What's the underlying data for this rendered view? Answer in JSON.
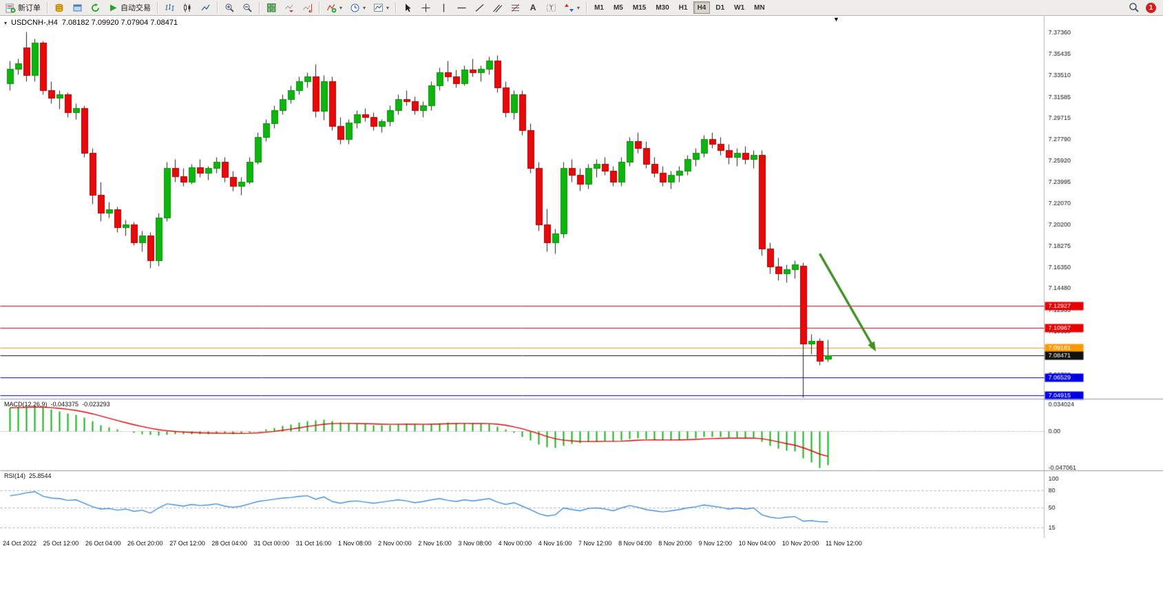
{
  "toolbar": {
    "new_order": "新订单",
    "autotrading": "自动交易",
    "timeframes": [
      "M1",
      "M5",
      "M15",
      "M30",
      "H1",
      "H4",
      "D1",
      "W1",
      "MN"
    ],
    "active_timeframe": "H4",
    "notification_count": "1"
  },
  "chart": {
    "symbol_title": "USDCNH-,H4",
    "quote": "7.08182 7.09920 7.07904 7.08471",
    "scroll_marker": "▼"
  },
  "macd_panel": {
    "label": "MACD(12,26,9)",
    "value_main": "-0.043375",
    "value_signal": "-0.023293",
    "axis_labels": [
      "0.034024",
      "0.00",
      "-0.047061"
    ]
  },
  "rsi_panel": {
    "label": "RSI(14)",
    "value": "25.8544",
    "axis_labels": [
      "100",
      "80",
      "50",
      "15"
    ],
    "levels": [
      80,
      50,
      15
    ]
  },
  "colors": {
    "bull": "#0FB50F",
    "bear": "#E60A0A",
    "bull_border": "#0A8F0A",
    "bear_border": "#B30000",
    "wick": "#222222",
    "macd_hist": "#0FB50F",
    "macd_signal": "#E60000",
    "rsi_line": "#3E8EDE",
    "axis_text": "#111111"
  },
  "chart_data": {
    "type": "candlestick",
    "symbol": "USDCNH-",
    "timeframe": "H4",
    "ohlc_last": {
      "open": 7.08182,
      "high": 7.0992,
      "low": 7.07904,
      "close": 7.08471
    },
    "y_range": [
      7.046,
      7.387
    ],
    "y_axis_ticks": [
      "7.37360",
      "7.35435",
      "7.33510",
      "7.31585",
      "7.29715",
      "7.27790",
      "7.25920",
      "7.23995",
      "7.22070",
      "7.20200",
      "7.18275",
      "7.16350",
      "7.14480",
      "7.12555",
      "7.10630",
      "7.08705",
      "7.06780"
    ],
    "x_labels": [
      "24 Oct 2022",
      "25 Oct 12:00",
      "26 Oct 04:00",
      "26 Oct 20:00",
      "27 Oct 12:00",
      "28 Oct 04:00",
      "31 Oct 00:00",
      "31 Oct 16:00",
      "1 Nov 08:00",
      "2 Nov 00:00",
      "2 Nov 16:00",
      "3 Nov 08:00",
      "4 Nov 00:00",
      "4 Nov 16:00",
      "7 Nov 12:00",
      "8 Nov 04:00",
      "8 Nov 20:00",
      "9 Nov 12:00",
      "10 Nov 04:00",
      "10 Nov 20:00",
      "11 Nov 12:00"
    ],
    "candles": [
      [
        7.328,
        7.348,
        7.322,
        7.341
      ],
      [
        7.341,
        7.35,
        7.336,
        7.346
      ],
      [
        7.36,
        7.374,
        7.33,
        7.335
      ],
      [
        7.335,
        7.368,
        7.33,
        7.364
      ],
      [
        7.364,
        7.366,
        7.318,
        7.322
      ],
      [
        7.322,
        7.33,
        7.31,
        7.315
      ],
      [
        7.315,
        7.322,
        7.305,
        7.318
      ],
      [
        7.318,
        7.32,
        7.298,
        7.302
      ],
      [
        7.302,
        7.31,
        7.296,
        7.306
      ],
      [
        7.306,
        7.308,
        7.262,
        7.266
      ],
      [
        7.266,
        7.27,
        7.22,
        7.228
      ],
      [
        7.228,
        7.24,
        7.205,
        7.212
      ],
      [
        7.212,
        7.222,
        7.208,
        7.215
      ],
      [
        7.215,
        7.218,
        7.195,
        7.199
      ],
      [
        7.199,
        7.206,
        7.192,
        7.202
      ],
      [
        7.202,
        7.204,
        7.183,
        7.186
      ],
      [
        7.186,
        7.196,
        7.178,
        7.192
      ],
      [
        7.192,
        7.195,
        7.163,
        7.17
      ],
      [
        7.17,
        7.212,
        7.165,
        7.208
      ],
      [
        7.208,
        7.258,
        7.205,
        7.252
      ],
      [
        7.252,
        7.26,
        7.24,
        7.245
      ],
      [
        7.245,
        7.252,
        7.236,
        7.24
      ],
      [
        7.24,
        7.256,
        7.238,
        7.253
      ],
      [
        7.253,
        7.26,
        7.244,
        7.248
      ],
      [
        7.248,
        7.254,
        7.242,
        7.252
      ],
      [
        7.252,
        7.262,
        7.248,
        7.258
      ],
      [
        7.258,
        7.262,
        7.24,
        7.244
      ],
      [
        7.244,
        7.25,
        7.232,
        7.236
      ],
      [
        7.236,
        7.244,
        7.228,
        7.24
      ],
      [
        7.24,
        7.262,
        7.238,
        7.258
      ],
      [
        7.258,
        7.284,
        7.256,
        7.28
      ],
      [
        7.28,
        7.296,
        7.276,
        7.292
      ],
      [
        7.292,
        7.308,
        7.288,
        7.304
      ],
      [
        7.304,
        7.318,
        7.3,
        7.314
      ],
      [
        7.314,
        7.326,
        7.31,
        7.322
      ],
      [
        7.322,
        7.334,
        7.318,
        7.33
      ],
      [
        7.33,
        7.338,
        7.324,
        7.334
      ],
      [
        7.334,
        7.345,
        7.298,
        7.303
      ],
      [
        7.303,
        7.335,
        7.295,
        7.33
      ],
      [
        7.33,
        7.334,
        7.286,
        7.29
      ],
      [
        7.29,
        7.298,
        7.274,
        7.278
      ],
      [
        7.278,
        7.296,
        7.274,
        7.293
      ],
      [
        7.293,
        7.304,
        7.288,
        7.3
      ],
      [
        7.3,
        7.306,
        7.294,
        7.298
      ],
      [
        7.298,
        7.302,
        7.286,
        7.29
      ],
      [
        7.29,
        7.296,
        7.284,
        7.294
      ],
      [
        7.294,
        7.308,
        7.29,
        7.304
      ],
      [
        7.304,
        7.318,
        7.3,
        7.314
      ],
      [
        7.314,
        7.322,
        7.308,
        7.312
      ],
      [
        7.312,
        7.316,
        7.3,
        7.304
      ],
      [
        7.304,
        7.312,
        7.298,
        7.308
      ],
      [
        7.308,
        7.33,
        7.304,
        7.326
      ],
      [
        7.326,
        7.342,
        7.322,
        7.338
      ],
      [
        7.338,
        7.348,
        7.33,
        7.334
      ],
      [
        7.334,
        7.34,
        7.324,
        7.328
      ],
      [
        7.328,
        7.344,
        7.326,
        7.34
      ],
      [
        7.34,
        7.35,
        7.334,
        7.338
      ],
      [
        7.338,
        7.344,
        7.33,
        7.341
      ],
      [
        7.341,
        7.352,
        7.336,
        7.348
      ],
      [
        7.348,
        7.353,
        7.32,
        7.324
      ],
      [
        7.324,
        7.33,
        7.298,
        7.302
      ],
      [
        7.302,
        7.322,
        7.296,
        7.318
      ],
      [
        7.318,
        7.322,
        7.282,
        7.286
      ],
      [
        7.286,
        7.292,
        7.248,
        7.252
      ],
      [
        7.252,
        7.258,
        7.196,
        7.202
      ],
      [
        7.202,
        7.216,
        7.178,
        7.186
      ],
      [
        7.186,
        7.198,
        7.176,
        7.194
      ],
      [
        7.194,
        7.258,
        7.19,
        7.252
      ],
      [
        7.252,
        7.26,
        7.24,
        7.246
      ],
      [
        7.246,
        7.252,
        7.232,
        7.238
      ],
      [
        7.238,
        7.256,
        7.234,
        7.252
      ],
      [
        7.252,
        7.26,
        7.244,
        7.256
      ],
      [
        7.256,
        7.262,
        7.246,
        7.25
      ],
      [
        7.25,
        7.254,
        7.236,
        7.24
      ],
      [
        7.24,
        7.262,
        7.236,
        7.258
      ],
      [
        7.258,
        7.28,
        7.254,
        7.276
      ],
      [
        7.276,
        7.284,
        7.266,
        7.27
      ],
      [
        7.27,
        7.276,
        7.252,
        7.256
      ],
      [
        7.256,
        7.262,
        7.244,
        7.248
      ],
      [
        7.248,
        7.254,
        7.236,
        7.24
      ],
      [
        7.24,
        7.25,
        7.234,
        7.246
      ],
      [
        7.246,
        7.254,
        7.24,
        7.25
      ],
      [
        7.25,
        7.264,
        7.246,
        7.26
      ],
      [
        7.26,
        7.27,
        7.254,
        7.266
      ],
      [
        7.266,
        7.282,
        7.262,
        7.278
      ],
      [
        7.278,
        7.284,
        7.27,
        7.274
      ],
      [
        7.274,
        7.28,
        7.264,
        7.268
      ],
      [
        7.268,
        7.274,
        7.256,
        7.262
      ],
      [
        7.262,
        7.27,
        7.254,
        7.266
      ],
      [
        7.266,
        7.272,
        7.256,
        7.26
      ],
      [
        7.26,
        7.268,
        7.252,
        7.264
      ],
      [
        7.264,
        7.268,
        7.174,
        7.18
      ],
      [
        7.18,
        7.186,
        7.158,
        7.164
      ],
      [
        7.164,
        7.172,
        7.152,
        7.158
      ],
      [
        7.158,
        7.166,
        7.15,
        7.162
      ],
      [
        7.162,
        7.17,
        7.154,
        7.166
      ],
      [
        7.165,
        7.168,
        7.047,
        7.095
      ],
      [
        7.095,
        7.104,
        7.086,
        7.098
      ],
      [
        7.098,
        7.1,
        7.076,
        7.08
      ],
      [
        7.08182,
        7.0992,
        7.07904,
        7.08471
      ]
    ],
    "levels": [
      {
        "price": 7.12927,
        "label": "7.12927",
        "color": "#E60000",
        "style": "solid"
      },
      {
        "price": 7.10967,
        "label": "7.10967",
        "color": "#E60000",
        "style": "solid"
      },
      {
        "price": 7.09181,
        "label": "7.09181",
        "color": "#FF9900",
        "style": "solid"
      },
      {
        "price": 7.08471,
        "label": "7.08471",
        "color": "#111111",
        "style": "solid",
        "role": "bid"
      },
      {
        "price": 7.06529,
        "label": "7.06529",
        "color": "#0000E6",
        "style": "solid"
      },
      {
        "price": 7.04915,
        "label": "7.04915",
        "color": "#0000E6",
        "style": "solid"
      }
    ],
    "arrow_annotation": {
      "from_index": 98,
      "from_price": 7.176,
      "to_index": 104.8,
      "to_price": 7.0885,
      "color": "#3E8E23"
    },
    "indicators": [
      {
        "name": "MACD",
        "params": [
          12,
          26,
          9
        ],
        "signal_ema": 9,
        "axis": [
          0.034024,
          0,
          -0.047061
        ],
        "histogram": [
          0.03,
          0.031,
          0.0315,
          0.032,
          0.0305,
          0.028,
          0.0255,
          0.023,
          0.0205,
          0.017,
          0.0125,
          0.008,
          0.005,
          0.002,
          0.0,
          -0.002,
          -0.0035,
          -0.005,
          -0.0055,
          -0.0045,
          -0.004,
          -0.0042,
          -0.004,
          -0.0038,
          -0.0035,
          -0.003,
          -0.0032,
          -0.0036,
          -0.003,
          -0.0018,
          0.0,
          0.002,
          0.0042,
          0.0065,
          0.0088,
          0.0108,
          0.0125,
          0.0138,
          0.0142,
          0.0128,
          0.0108,
          0.0098,
          0.0095,
          0.009,
          0.008,
          0.0076,
          0.008,
          0.009,
          0.0094,
          0.0088,
          0.0084,
          0.0092,
          0.0104,
          0.0112,
          0.0105,
          0.0102,
          0.0098,
          0.0096,
          0.009,
          0.006,
          0.002,
          -0.0025,
          -0.007,
          -0.012,
          -0.017,
          -0.0205,
          -0.0215,
          -0.0185,
          -0.0165,
          -0.0155,
          -0.014,
          -0.0128,
          -0.0125,
          -0.0128,
          -0.0118,
          -0.01,
          -0.0092,
          -0.0098,
          -0.0108,
          -0.0115,
          -0.0115,
          -0.0108,
          -0.0098,
          -0.0088,
          -0.0078,
          -0.0075,
          -0.0078,
          -0.0085,
          -0.0085,
          -0.0088,
          -0.0085,
          -0.0135,
          -0.0185,
          -0.0225,
          -0.025,
          -0.0262,
          -0.0345,
          -0.04,
          -0.047061,
          -0.043375
        ]
      },
      {
        "name": "RSI",
        "params": [
          14
        ],
        "range": [
          0,
          100
        ],
        "values": [
          71,
          73,
          76,
          78,
          70,
          67,
          66,
          63,
          64,
          58,
          52,
          48,
          49,
          46,
          48,
          44,
          46,
          41,
          50,
          57,
          55,
          53,
          56,
          54,
          55,
          57,
          53,
          51,
          53,
          57,
          61,
          63,
          65,
          67,
          68,
          70,
          71,
          65,
          69,
          61,
          58,
          61,
          62,
          60,
          58,
          60,
          62,
          64,
          62,
          59,
          61,
          64,
          66,
          63,
          61,
          64,
          62,
          64,
          66,
          60,
          56,
          59,
          53,
          47,
          40,
          36,
          38,
          50,
          47,
          45,
          49,
          50,
          48,
          45,
          50,
          54,
          51,
          47,
          45,
          43,
          45,
          47,
          50,
          52,
          55,
          53,
          51,
          48,
          50,
          48,
          50,
          38,
          34,
          32,
          34,
          35,
          27,
          28,
          26,
          25.8544
        ]
      }
    ]
  }
}
